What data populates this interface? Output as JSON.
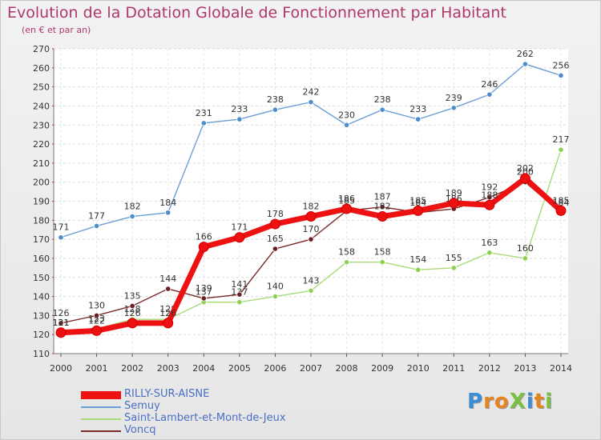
{
  "header": {
    "title": "Evolution de la Dotation Globale de Fonctionnement par Habitant",
    "subtitle": "(en € et par an)"
  },
  "logo": {
    "text": "ProXiti",
    "colors": [
      "#3a8ed6",
      "#e6841f",
      "#e6841f",
      "#7cc043",
      "#3a8ed6",
      "#e6841f",
      "#7cc043"
    ]
  },
  "chart_data": {
    "type": "line",
    "title": "Evolution de la Dotation Globale de Fonctionnement par Habitant",
    "subtitle": "(en € et par an)",
    "xlabel": "",
    "ylabel": "",
    "ylim": [
      110,
      270
    ],
    "y_tick_step": 10,
    "grid": true,
    "legend_position": "bottom-left",
    "categories": [
      "2000",
      "2001",
      "2002",
      "2003",
      "2004",
      "2005",
      "2006",
      "2007",
      "2008",
      "2009",
      "2010",
      "2011",
      "2012",
      "2013",
      "2014"
    ],
    "series": [
      {
        "name": "Semuy",
        "color": "#6a9fd6",
        "marker_color": "#4d8dcc",
        "values": [
          171,
          177,
          182,
          184,
          231,
          233,
          238,
          242,
          230,
          238,
          233,
          239,
          246,
          262,
          256
        ],
        "labels": [
          "171",
          "177",
          "182",
          "184",
          "231",
          "233",
          "238",
          "242",
          "230",
          "238",
          "233",
          "239",
          "246",
          "262",
          "256"
        ]
      },
      {
        "name": "Saint-Lambert-et-Mont-de-Jeux",
        "color": "#a8dc78",
        "marker_color": "#8fcf52",
        "values": [
          121,
          123,
          128,
          128,
          137,
          137,
          140,
          143,
          158,
          158,
          154,
          155,
          163,
          160,
          217
        ],
        "labels": [
          "121",
          "123",
          "128",
          "128",
          "137",
          "137",
          "140",
          "143",
          "158",
          "158",
          "154",
          "155",
          "163",
          "160",
          "217"
        ]
      },
      {
        "name": "Voncq",
        "color": "#7a2a2a",
        "marker_color": "#6a1f22",
        "values": [
          126,
          130,
          135,
          144,
          139,
          141,
          165,
          170,
          185,
          187,
          184,
          186,
          192,
          200,
          184
        ],
        "labels": [
          "126",
          "130",
          "135",
          "144",
          "139",
          "141",
          "165",
          "170",
          "185",
          "187",
          "184",
          "186",
          "192",
          "200",
          "184"
        ]
      },
      {
        "name": "RILLY-SUR-AISNE",
        "color": "#ee1111",
        "marker_color": "#ee1111",
        "values": [
          121,
          122,
          126,
          126,
          166,
          171,
          178,
          182,
          186,
          182,
          185,
          189,
          188,
          202,
          185
        ],
        "labels": [
          "121",
          "122",
          "126",
          "126",
          "166",
          "171",
          "178",
          "182",
          "186",
          "182",
          "185",
          "189",
          "188",
          "202",
          "185"
        ]
      }
    ]
  },
  "legend": {
    "items": [
      {
        "label": "RILLY-SUR-AISNE",
        "color": "#ee1111",
        "thickness": 10
      },
      {
        "label": "Semuy",
        "color": "#6a9fd6",
        "thickness": 2
      },
      {
        "label": "Saint-Lambert-et-Mont-de-Jeux",
        "color": "#a8dc78",
        "thickness": 2
      },
      {
        "label": "Voncq",
        "color": "#7a2a2a",
        "thickness": 2
      }
    ]
  }
}
